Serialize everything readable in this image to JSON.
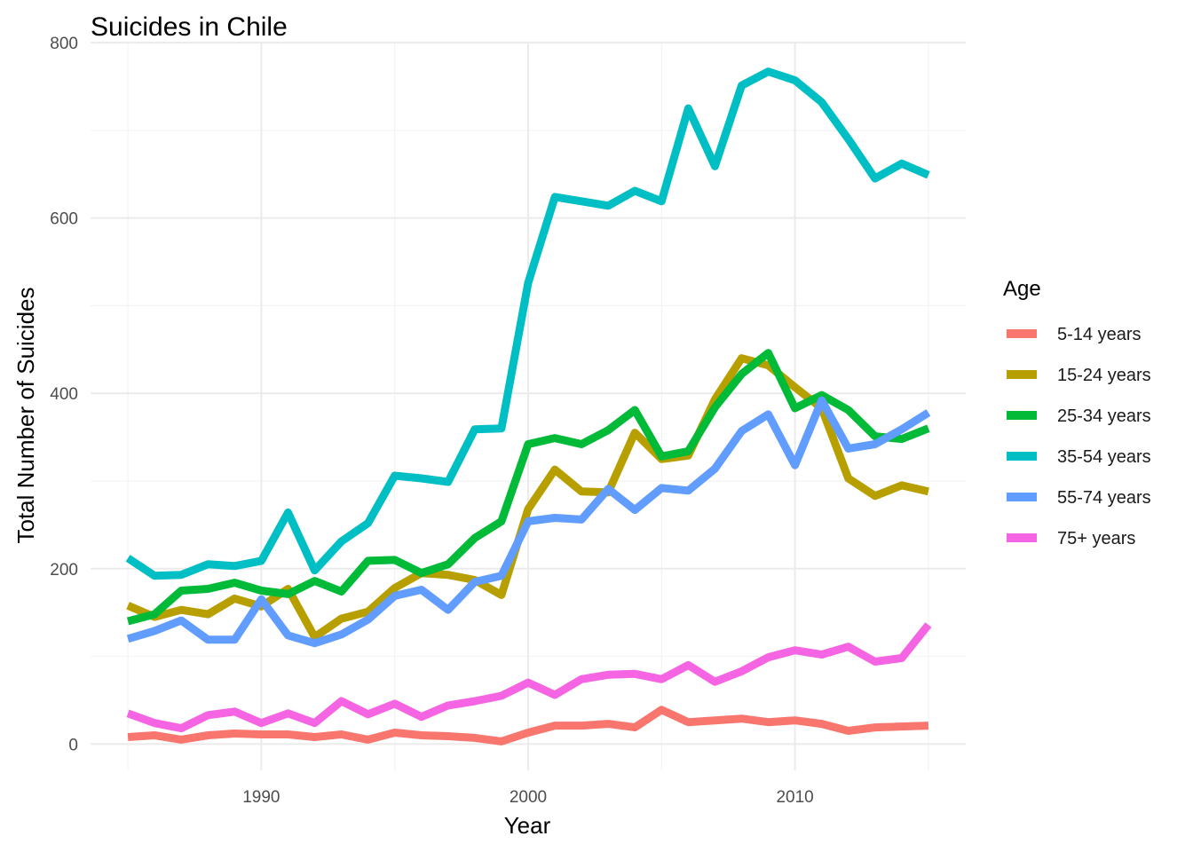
{
  "chart_data": {
    "type": "line",
    "title": "Suicides in Chile",
    "xlabel": "Year",
    "ylabel": "Total Number of Suicides",
    "xlim": [
      1983.6,
      2016.4
    ],
    "ylim": [
      -30,
      800
    ],
    "x_ticks": [
      1990,
      2000,
      2010
    ],
    "y_ticks": [
      0,
      200,
      400,
      600,
      800
    ],
    "x_minor": [
      1985,
      1995,
      2005,
      2015
    ],
    "y_minor": [
      100,
      300,
      500,
      700
    ],
    "grid": true,
    "legend": {
      "title": "Age",
      "position": "right"
    },
    "x": [
      1985,
      1986,
      1987,
      1988,
      1989,
      1990,
      1991,
      1992,
      1993,
      1994,
      1995,
      1996,
      1997,
      1998,
      1999,
      2000,
      2001,
      2002,
      2003,
      2004,
      2005,
      2006,
      2007,
      2008,
      2009,
      2010,
      2011,
      2012,
      2013,
      2014,
      2015
    ],
    "series": [
      {
        "name": "5-14 years",
        "color": "#F8766D",
        "values": [
          8,
          10,
          5,
          10,
          12,
          11,
          11,
          8,
          11,
          5,
          13,
          10,
          9,
          7,
          3,
          13,
          21,
          21,
          23,
          19,
          39,
          25,
          27,
          29,
          25,
          27,
          23,
          15,
          19,
          20,
          21
        ]
      },
      {
        "name": "15-24 years",
        "color": "#B79F00",
        "values": [
          158,
          145,
          153,
          148,
          166,
          157,
          177,
          122,
          143,
          151,
          178,
          195,
          193,
          187,
          170,
          268,
          313,
          288,
          287,
          355,
          325,
          329,
          393,
          440,
          432,
          407,
          383,
          303,
          283,
          295,
          288
        ]
      },
      {
        "name": "25-34 years",
        "color": "#00BA38",
        "values": [
          140,
          148,
          175,
          177,
          184,
          175,
          171,
          186,
          174,
          209,
          210,
          195,
          205,
          235,
          254,
          342,
          349,
          342,
          358,
          381,
          328,
          334,
          384,
          422,
          446,
          383,
          398,
          381,
          351,
          348,
          360
        ]
      },
      {
        "name": "35-54 years",
        "color": "#00BFC4",
        "values": [
          212,
          192,
          193,
          205,
          203,
          209,
          264,
          198,
          231,
          252,
          306,
          303,
          299,
          359,
          360,
          526,
          624,
          619,
          614,
          631,
          619,
          725,
          659,
          751,
          767,
          757,
          732,
          690,
          645,
          662,
          649
        ]
      },
      {
        "name": "55-74 years",
        "color": "#619CFF",
        "values": [
          120,
          129,
          141,
          119,
          119,
          165,
          124,
          115,
          125,
          142,
          169,
          176,
          153,
          185,
          192,
          254,
          258,
          256,
          291,
          267,
          292,
          289,
          314,
          357,
          376,
          318,
          392,
          337,
          342,
          359,
          378
        ]
      },
      {
        "name": "75+ years",
        "color": "#F564E3",
        "values": [
          35,
          24,
          18,
          33,
          37,
          24,
          35,
          24,
          49,
          34,
          46,
          31,
          44,
          49,
          55,
          70,
          56,
          74,
          79,
          80,
          74,
          90,
          71,
          83,
          99,
          107,
          102,
          111,
          94,
          98,
          136
        ]
      }
    ]
  }
}
